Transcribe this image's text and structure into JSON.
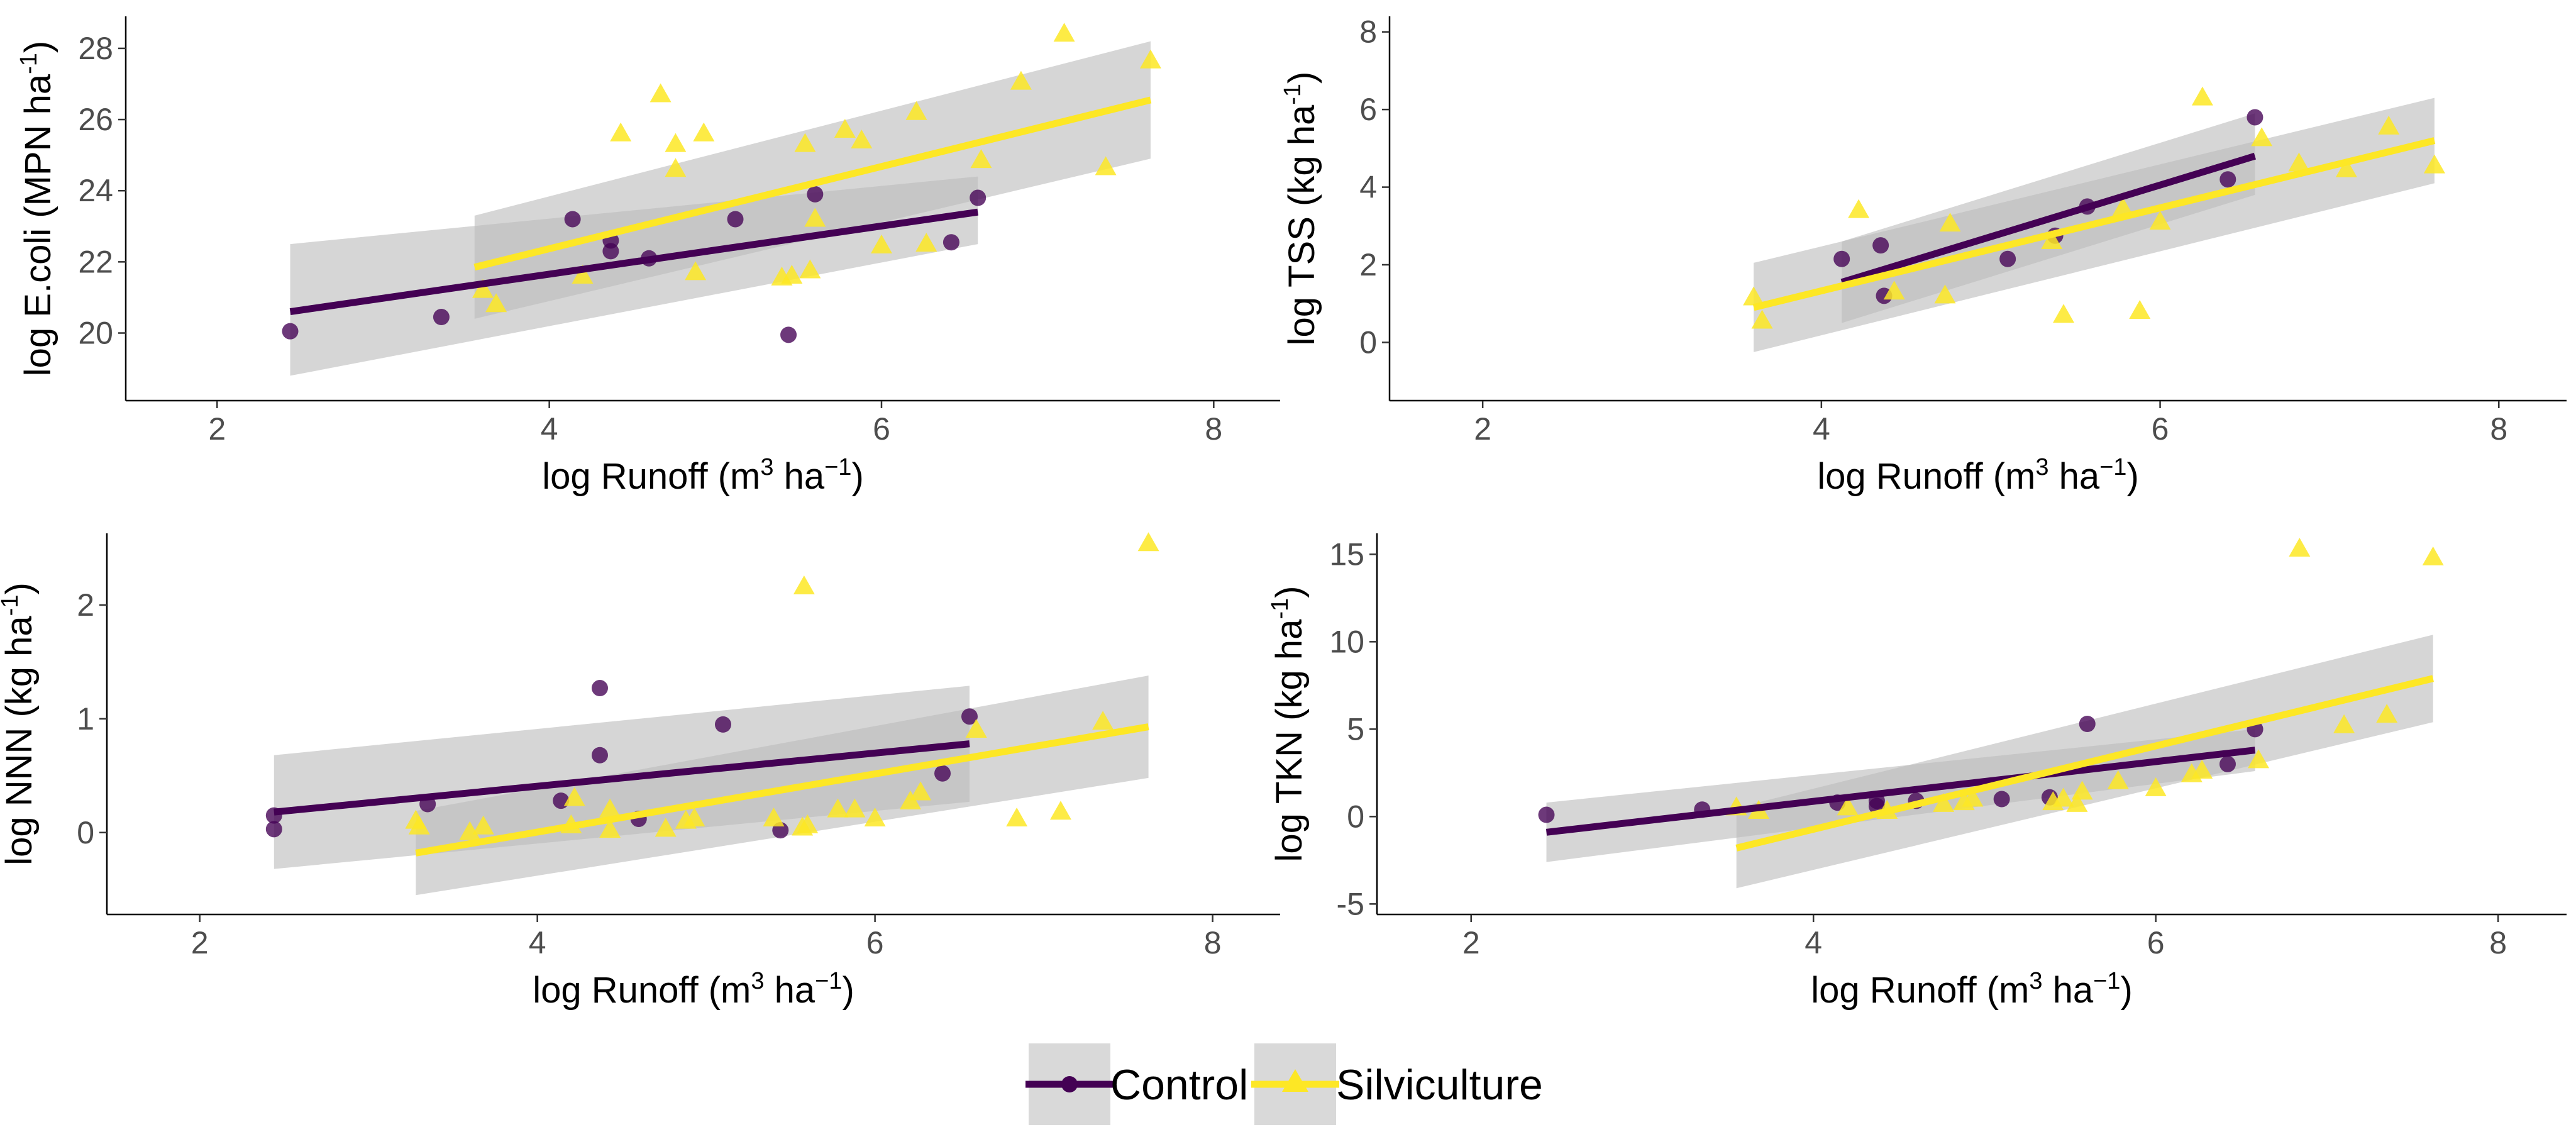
{
  "legend": {
    "items": [
      {
        "label": "Control",
        "color": "#440154",
        "marker": "circle"
      },
      {
        "label": "Silviculture",
        "color": "#FDE725",
        "marker": "triangle"
      }
    ]
  },
  "colors": {
    "control": "#440154",
    "silviculture": "#FDE725",
    "band": "#bdbdbd"
  },
  "chart_data": [
    {
      "type": "scatter",
      "id": "ecoli",
      "xlabel": {
        "base": "log Runoff (m",
        "sup1": "3",
        "mid": " ha",
        "sup2": "−1",
        "end": ")"
      },
      "ylabel": {
        "base": "log E.coli (MPN ha",
        "sup": "-1",
        "end": ")"
      },
      "xlim": [
        1.45,
        8.4
      ],
      "ylim": [
        18.1,
        28.9
      ],
      "xticks": [
        2,
        4,
        6,
        8
      ],
      "yticks": [
        20,
        22,
        24,
        26,
        28
      ],
      "series": [
        {
          "name": "Control",
          "points": [
            [
              2.44,
              20.05
            ],
            [
              3.35,
              20.45
            ],
            [
              4.14,
              23.2
            ],
            [
              4.37,
              22.6
            ],
            [
              4.37,
              22.3
            ],
            [
              4.6,
              22.1
            ],
            [
              5.12,
              23.2
            ],
            [
              5.44,
              19.95
            ],
            [
              5.6,
              23.9
            ],
            [
              6.42,
              22.55
            ],
            [
              6.58,
              23.8
            ]
          ],
          "fit": {
            "x": [
              2.44,
              6.58
            ],
            "y": [
              20.6,
              23.4
            ],
            "ci_low": [
              18.8,
              22.5
            ],
            "ci_high": [
              22.5,
              24.4
            ]
          }
        },
        {
          "name": "Silviculture",
          "points": [
            [
              3.6,
              21.2
            ],
            [
              3.68,
              20.8
            ],
            [
              4.2,
              21.6
            ],
            [
              4.43,
              25.6
            ],
            [
              4.67,
              26.7
            ],
            [
              4.76,
              25.3
            ],
            [
              4.76,
              24.6
            ],
            [
              4.88,
              21.7
            ],
            [
              4.93,
              25.6
            ],
            [
              5.4,
              21.55
            ],
            [
              5.46,
              21.6
            ],
            [
              5.54,
              25.3
            ],
            [
              5.57,
              21.75
            ],
            [
              5.6,
              23.2
            ],
            [
              5.78,
              25.7
            ],
            [
              5.88,
              25.4
            ],
            [
              6.0,
              22.45
            ],
            [
              6.21,
              26.2
            ],
            [
              6.27,
              22.5
            ],
            [
              6.6,
              24.85
            ],
            [
              6.84,
              27.05
            ],
            [
              7.1,
              28.4
            ],
            [
              7.35,
              24.65
            ],
            [
              7.62,
              27.65
            ]
          ],
          "fit": {
            "x": [
              3.55,
              7.62
            ],
            "y": [
              21.85,
              26.55
            ],
            "ci_low": [
              20.4,
              24.9
            ],
            "ci_high": [
              23.3,
              28.2
            ]
          }
        }
      ]
    },
    {
      "type": "scatter",
      "id": "tss",
      "xlabel": {
        "base": "log Runoff (m",
        "sup1": "3",
        "mid": " ha",
        "sup2": "−1",
        "end": ")"
      },
      "ylabel": {
        "base": "log TSS (kg ha",
        "sup": "-1",
        "end": ")"
      },
      "xlim": [
        1.45,
        8.4
      ],
      "ylim": [
        -1.5,
        8.4
      ],
      "xticks": [
        2,
        4,
        6,
        8
      ],
      "yticks": [
        0,
        2,
        4,
        6,
        8
      ],
      "series": [
        {
          "name": "Control",
          "points": [
            [
              4.12,
              2.15
            ],
            [
              4.35,
              2.5
            ],
            [
              4.37,
              1.2
            ],
            [
              5.1,
              2.15
            ],
            [
              5.38,
              2.75
            ],
            [
              5.57,
              3.5
            ],
            [
              6.4,
              4.2
            ],
            [
              6.56,
              5.8
            ]
          ],
          "fit": {
            "x": [
              4.12,
              6.56
            ],
            "y": [
              1.55,
              4.8
            ],
            "ci_low": [
              0.5,
              3.8
            ],
            "ci_high": [
              2.6,
              5.9
            ]
          }
        },
        {
          "name": "Silviculture",
          "points": [
            [
              3.6,
              1.15
            ],
            [
              3.65,
              0.55
            ],
            [
              4.22,
              3.4
            ],
            [
              4.43,
              1.3
            ],
            [
              4.73,
              1.2
            ],
            [
              4.76,
              3.05
            ],
            [
              5.36,
              2.6
            ],
            [
              5.43,
              0.7
            ],
            [
              5.78,
              3.45
            ],
            [
              5.88,
              0.8
            ],
            [
              6.0,
              3.1
            ],
            [
              6.25,
              6.3
            ],
            [
              6.6,
              5.25
            ],
            [
              6.82,
              4.6
            ],
            [
              7.1,
              4.45
            ],
            [
              7.35,
              5.55
            ],
            [
              7.62,
              4.55
            ]
          ],
          "fit": {
            "x": [
              3.6,
              7.62
            ],
            "y": [
              0.9,
              5.2
            ],
            "ci_low": [
              -0.25,
              4.1
            ],
            "ci_high": [
              2.05,
              6.3
            ]
          }
        }
      ]
    },
    {
      "type": "scatter",
      "id": "nnn",
      "xlabel": {
        "base": "log Runoff (m",
        "sup1": "3",
        "mid": " ha",
        "sup2": "−1",
        "end": ")"
      },
      "ylabel": {
        "base": "log NNN (kg ha",
        "sup": "-1",
        "end": ")"
      },
      "xlim": [
        1.45,
        8.4
      ],
      "ylim": [
        -0.72,
        2.63
      ],
      "xticks": [
        2,
        4,
        6,
        8
      ],
      "yticks": [
        0,
        1,
        2
      ],
      "series": [
        {
          "name": "Control",
          "points": [
            [
              2.44,
              0.15
            ],
            [
              2.44,
              0.03
            ],
            [
              3.35,
              0.25
            ],
            [
              4.14,
              0.28
            ],
            [
              4.37,
              0.68
            ],
            [
              4.37,
              1.27
            ],
            [
              4.6,
              0.12
            ],
            [
              5.1,
              0.95
            ],
            [
              5.44,
              0.02
            ],
            [
              6.4,
              0.52
            ],
            [
              6.56,
              1.02
            ]
          ],
          "fit": {
            "x": [
              2.44,
              6.56
            ],
            "y": [
              0.18,
              0.78
            ],
            "ci_low": [
              -0.32,
              0.27
            ],
            "ci_high": [
              0.68,
              1.29
            ]
          }
        },
        {
          "name": "Silviculture",
          "points": [
            [
              3.28,
              0.1
            ],
            [
              3.3,
              0.05
            ],
            [
              3.6,
              0.0
            ],
            [
              3.68,
              0.05
            ],
            [
              4.2,
              0.06
            ],
            [
              4.22,
              0.3
            ],
            [
              4.43,
              0.02
            ],
            [
              4.43,
              0.2
            ],
            [
              4.76,
              0.03
            ],
            [
              4.88,
              0.1
            ],
            [
              4.93,
              0.12
            ],
            [
              5.4,
              0.12
            ],
            [
              5.57,
              0.04
            ],
            [
              5.6,
              0.06
            ],
            [
              5.58,
              2.16
            ],
            [
              5.78,
              0.2
            ],
            [
              5.88,
              0.2
            ],
            [
              6.0,
              0.12
            ],
            [
              6.21,
              0.27
            ],
            [
              6.27,
              0.35
            ],
            [
              6.6,
              0.9
            ],
            [
              6.84,
              0.12
            ],
            [
              7.1,
              0.18
            ],
            [
              7.35,
              0.97
            ],
            [
              7.62,
              2.54
            ]
          ],
          "fit": {
            "x": [
              3.28,
              7.62
            ],
            "y": [
              -0.18,
              0.93
            ],
            "ci_low": [
              -0.55,
              0.48
            ],
            "ci_high": [
              0.19,
              1.38
            ]
          }
        }
      ]
    },
    {
      "type": "scatter",
      "id": "tkn",
      "xlabel": {
        "base": "log Runoff (m",
        "sup1": "3",
        "mid": " ha",
        "sup2": "−1",
        "end": ")"
      },
      "ylabel": {
        "base": "log TKN (kg ha",
        "sup": "-1",
        "end": ")"
      },
      "xlim": [
        1.45,
        8.4
      ],
      "ylim": [
        -5.6,
        16.2
      ],
      "xticks": [
        2,
        4,
        6,
        8
      ],
      "yticks": [
        -5,
        0,
        5,
        10,
        15
      ],
      "series": [
        {
          "name": "Control",
          "points": [
            [
              2.44,
              0.1
            ],
            [
              3.35,
              0.4
            ],
            [
              4.14,
              0.8
            ],
            [
              4.37,
              0.9
            ],
            [
              4.37,
              0.6
            ],
            [
              4.6,
              0.9
            ],
            [
              5.1,
              1.0
            ],
            [
              5.38,
              1.1
            ],
            [
              5.6,
              5.3
            ],
            [
              6.42,
              3.0
            ],
            [
              6.58,
              5.0
            ]
          ],
          "fit": {
            "x": [
              2.44,
              6.58
            ],
            "y": [
              -0.9,
              3.8
            ],
            "ci_low": [
              -2.6,
              2.6
            ],
            "ci_high": [
              0.8,
              5.0
            ]
          }
        },
        {
          "name": "Silviculture",
          "points": [
            [
              3.55,
              0.5
            ],
            [
              3.68,
              0.3
            ],
            [
              4.2,
              0.5
            ],
            [
              4.43,
              0.3
            ],
            [
              4.76,
              0.7
            ],
            [
              4.88,
              0.8
            ],
            [
              4.93,
              1.0
            ],
            [
              5.4,
              0.8
            ],
            [
              5.46,
              1.0
            ],
            [
              5.54,
              0.7
            ],
            [
              5.57,
              1.4
            ],
            [
              5.78,
              2.0
            ],
            [
              6.0,
              1.6
            ],
            [
              6.21,
              2.4
            ],
            [
              6.27,
              2.6
            ],
            [
              6.6,
              3.2
            ],
            [
              6.84,
              15.3
            ],
            [
              7.1,
              5.2
            ],
            [
              7.35,
              5.8
            ],
            [
              7.62,
              14.8
            ]
          ],
          "fit": {
            "x": [
              3.55,
              7.62
            ],
            "y": [
              -1.8,
              7.9
            ],
            "ci_low": [
              -4.1,
              5.4
            ],
            "ci_high": [
              0.5,
              10.4
            ]
          }
        }
      ]
    }
  ]
}
